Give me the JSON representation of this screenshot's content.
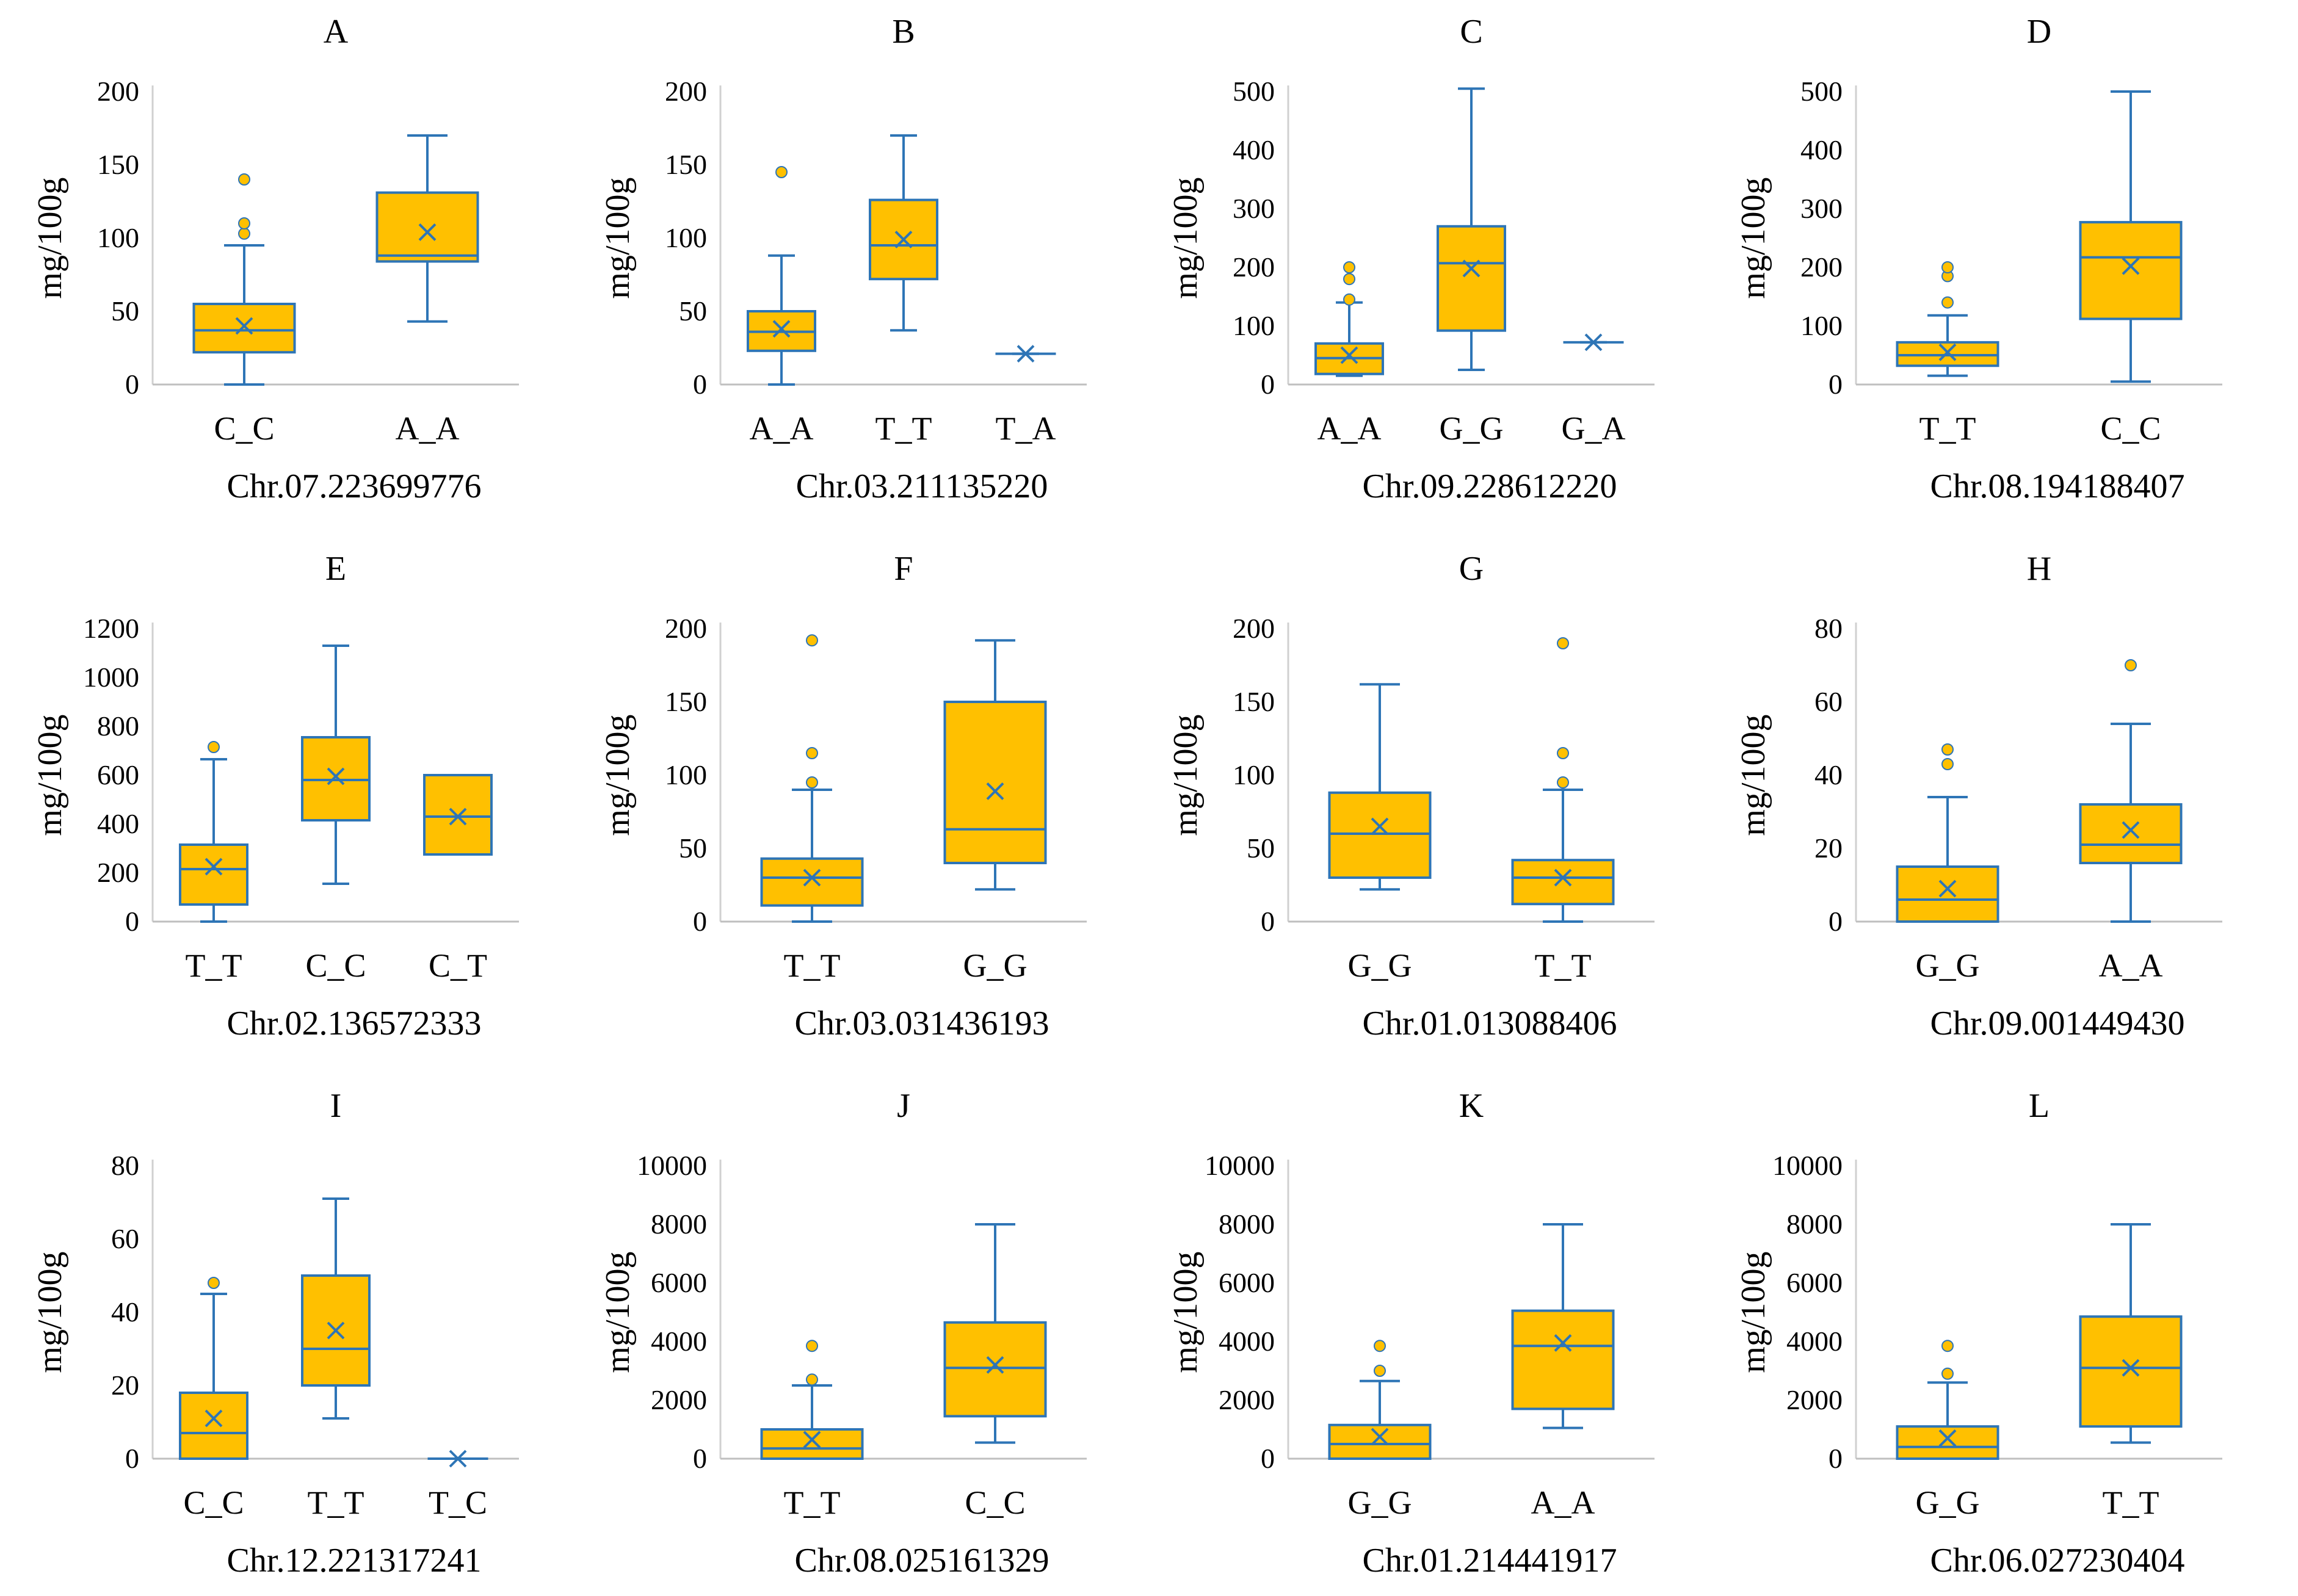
{
  "colors": {
    "box_fill": "#FFC000",
    "stroke": "#2E75B6",
    "outlier": "#2E75B6"
  },
  "chart_data": [
    {
      "type": "box",
      "title": "A",
      "xlabel": "Chr.07.223699776",
      "ylabel": "mg/100g",
      "ylim": [
        0,
        200
      ],
      "yticks": [
        0,
        50,
        100,
        150,
        200
      ],
      "categories": [
        {
          "label": "C_C",
          "min": 0,
          "q1": 22,
          "median": 37,
          "q3": 55,
          "max": 95,
          "mean": 40,
          "outliers": [
            103,
            110,
            140
          ]
        },
        {
          "label": "A_A",
          "min": 43,
          "q1": 84,
          "median": 88,
          "q3": 131,
          "max": 170,
          "mean": 104,
          "outliers": []
        }
      ]
    },
    {
      "type": "box",
      "title": "B",
      "xlabel": "Chr.03.211135220",
      "ylabel": "mg/100g",
      "ylim": [
        0,
        200
      ],
      "yticks": [
        0,
        50,
        100,
        150,
        200
      ],
      "categories": [
        {
          "label": "A_A",
          "min": 0,
          "q1": 23,
          "median": 36,
          "q3": 50,
          "max": 88,
          "mean": 38,
          "outliers": [
            145
          ]
        },
        {
          "label": "T_T",
          "min": 37,
          "q1": 72,
          "median": 95,
          "q3": 126,
          "max": 170,
          "mean": 99,
          "outliers": []
        },
        {
          "label": "T_A",
          "min": 21,
          "q1": 21,
          "median": 21,
          "q3": 21,
          "max": 21,
          "mean": 21,
          "outliers": []
        }
      ]
    },
    {
      "type": "box",
      "title": "C",
      "xlabel": "Chr.09.228612220",
      "ylabel": "mg/100g",
      "ylim": [
        0,
        500
      ],
      "yticks": [
        0,
        100,
        200,
        300,
        400,
        500
      ],
      "categories": [
        {
          "label": "A_A",
          "min": 15,
          "q1": 18,
          "median": 45,
          "q3": 70,
          "max": 140,
          "mean": 50,
          "outliers": [
            145,
            180,
            200
          ]
        },
        {
          "label": "G_G",
          "min": 25,
          "q1": 92,
          "median": 207,
          "q3": 270,
          "max": 505,
          "mean": 198,
          "outliers": []
        },
        {
          "label": "G_A",
          "min": 72,
          "q1": 72,
          "median": 72,
          "q3": 72,
          "max": 72,
          "mean": 72,
          "outliers": []
        }
      ]
    },
    {
      "type": "box",
      "title": "D",
      "xlabel": "Chr.08.194188407",
      "ylabel": "mg/100g",
      "ylim": [
        0,
        500
      ],
      "yticks": [
        0,
        100,
        200,
        300,
        400,
        500
      ],
      "categories": [
        {
          "label": "T_T",
          "min": 15,
          "q1": 32,
          "median": 50,
          "q3": 72,
          "max": 118,
          "mean": 55,
          "outliers": [
            140,
            185,
            200
          ]
        },
        {
          "label": "C_C",
          "min": 5,
          "q1": 112,
          "median": 217,
          "q3": 277,
          "max": 500,
          "mean": 202,
          "outliers": []
        }
      ]
    },
    {
      "type": "box",
      "title": "E",
      "xlabel": "Chr.02.136572333",
      "ylabel": "mg/100g",
      "ylim": [
        0,
        1200
      ],
      "yticks": [
        0,
        200,
        400,
        600,
        800,
        1000,
        1200
      ],
      "categories": [
        {
          "label": "T_T",
          "min": 0,
          "q1": 70,
          "median": 215,
          "q3": 315,
          "max": 665,
          "mean": 225,
          "outliers": [
            715
          ]
        },
        {
          "label": "C_C",
          "min": 155,
          "q1": 415,
          "median": 580,
          "q3": 755,
          "max": 1130,
          "mean": 595,
          "outliers": []
        },
        {
          "label": "C_T",
          "min": 275,
          "q1": 275,
          "median": 430,
          "q3": 600,
          "max": 600,
          "mean": 430,
          "outliers": []
        }
      ]
    },
    {
      "type": "box",
      "title": "F",
      "xlabel": "Chr.03.031436193",
      "ylabel": "mg/100g",
      "ylim": [
        0,
        200
      ],
      "yticks": [
        0,
        50,
        100,
        150,
        200
      ],
      "categories": [
        {
          "label": "T_T",
          "min": 0,
          "q1": 11,
          "median": 30,
          "q3": 43,
          "max": 90,
          "mean": 30,
          "outliers": [
            95,
            115,
            192
          ]
        },
        {
          "label": "G_G",
          "min": 22,
          "q1": 40,
          "median": 63,
          "q3": 150,
          "max": 192,
          "mean": 89,
          "outliers": []
        }
      ]
    },
    {
      "type": "box",
      "title": "G",
      "xlabel": "Chr.01.013088406",
      "ylabel": "mg/100g",
      "ylim": [
        0,
        200
      ],
      "yticks": [
        0,
        50,
        100,
        150,
        200
      ],
      "categories": [
        {
          "label": "G_G",
          "min": 22,
          "q1": 30,
          "median": 60,
          "q3": 88,
          "max": 162,
          "mean": 65,
          "outliers": []
        },
        {
          "label": "T_T",
          "min": 0,
          "q1": 12,
          "median": 30,
          "q3": 42,
          "max": 90,
          "mean": 30,
          "outliers": [
            95,
            115,
            190
          ]
        }
      ]
    },
    {
      "type": "box",
      "title": "H",
      "xlabel": "Chr.09.001449430",
      "ylabel": "mg/100g",
      "ylim": [
        0,
        80
      ],
      "yticks": [
        0,
        20,
        40,
        60,
        80
      ],
      "categories": [
        {
          "label": "G_G",
          "min": 0,
          "q1": 0,
          "median": 6,
          "q3": 15,
          "max": 34,
          "mean": 9,
          "outliers": [
            43,
            47
          ]
        },
        {
          "label": "A_A",
          "min": 0,
          "q1": 16,
          "median": 21,
          "q3": 32,
          "max": 54,
          "mean": 25,
          "outliers": [
            70
          ]
        }
      ]
    },
    {
      "type": "box",
      "title": "I",
      "xlabel": "Chr.12.221317241",
      "ylabel": "mg/100g",
      "ylim": [
        0,
        80
      ],
      "yticks": [
        0,
        20,
        40,
        60,
        80
      ],
      "categories": [
        {
          "label": "C_C",
          "min": 0,
          "q1": 0,
          "median": 7,
          "q3": 18,
          "max": 45,
          "mean": 11,
          "outliers": [
            48
          ]
        },
        {
          "label": "T_T",
          "min": 11,
          "q1": 20,
          "median": 30,
          "q3": 50,
          "max": 71,
          "mean": 35,
          "outliers": []
        },
        {
          "label": "T_C",
          "min": 0,
          "q1": 0,
          "median": 0,
          "q3": 0,
          "max": 0,
          "mean": 0,
          "outliers": []
        }
      ]
    },
    {
      "type": "box",
      "title": "J",
      "xlabel": "Chr.08.025161329",
      "ylabel": "mg/100g",
      "ylim": [
        0,
        10000
      ],
      "yticks": [
        0,
        2000,
        4000,
        6000,
        8000,
        10000
      ],
      "categories": [
        {
          "label": "T_T",
          "min": 0,
          "q1": 0,
          "median": 350,
          "q3": 1000,
          "max": 2500,
          "mean": 650,
          "outliers": [
            2700,
            3850
          ]
        },
        {
          "label": "C_C",
          "min": 550,
          "q1": 1450,
          "median": 3100,
          "q3": 4650,
          "max": 8000,
          "mean": 3200,
          "outliers": []
        }
      ]
    },
    {
      "type": "box",
      "title": "K",
      "xlabel": "Chr.01.214441917",
      "ylabel": "mg/100g",
      "ylim": [
        0,
        10000
      ],
      "yticks": [
        0,
        2000,
        4000,
        6000,
        8000,
        10000
      ],
      "categories": [
        {
          "label": "G_G",
          "min": 0,
          "q1": 0,
          "median": 500,
          "q3": 1150,
          "max": 2650,
          "mean": 750,
          "outliers": [
            3000,
            3850
          ]
        },
        {
          "label": "A_A",
          "min": 1050,
          "q1": 1700,
          "median": 3850,
          "q3": 5050,
          "max": 8000,
          "mean": 3950,
          "outliers": []
        }
      ]
    },
    {
      "type": "box",
      "title": "L",
      "xlabel": "Chr.06.027230404",
      "ylabel": "mg/100g",
      "ylim": [
        0,
        10000
      ],
      "yticks": [
        0,
        2000,
        4000,
        6000,
        8000,
        10000
      ],
      "categories": [
        {
          "label": "G_G",
          "min": 0,
          "q1": 0,
          "median": 400,
          "q3": 1100,
          "max": 2600,
          "mean": 700,
          "outliers": [
            2900,
            3850
          ]
        },
        {
          "label": "T_T",
          "min": 550,
          "q1": 1100,
          "median": 3100,
          "q3": 4850,
          "max": 8000,
          "mean": 3100,
          "outliers": []
        }
      ]
    }
  ]
}
